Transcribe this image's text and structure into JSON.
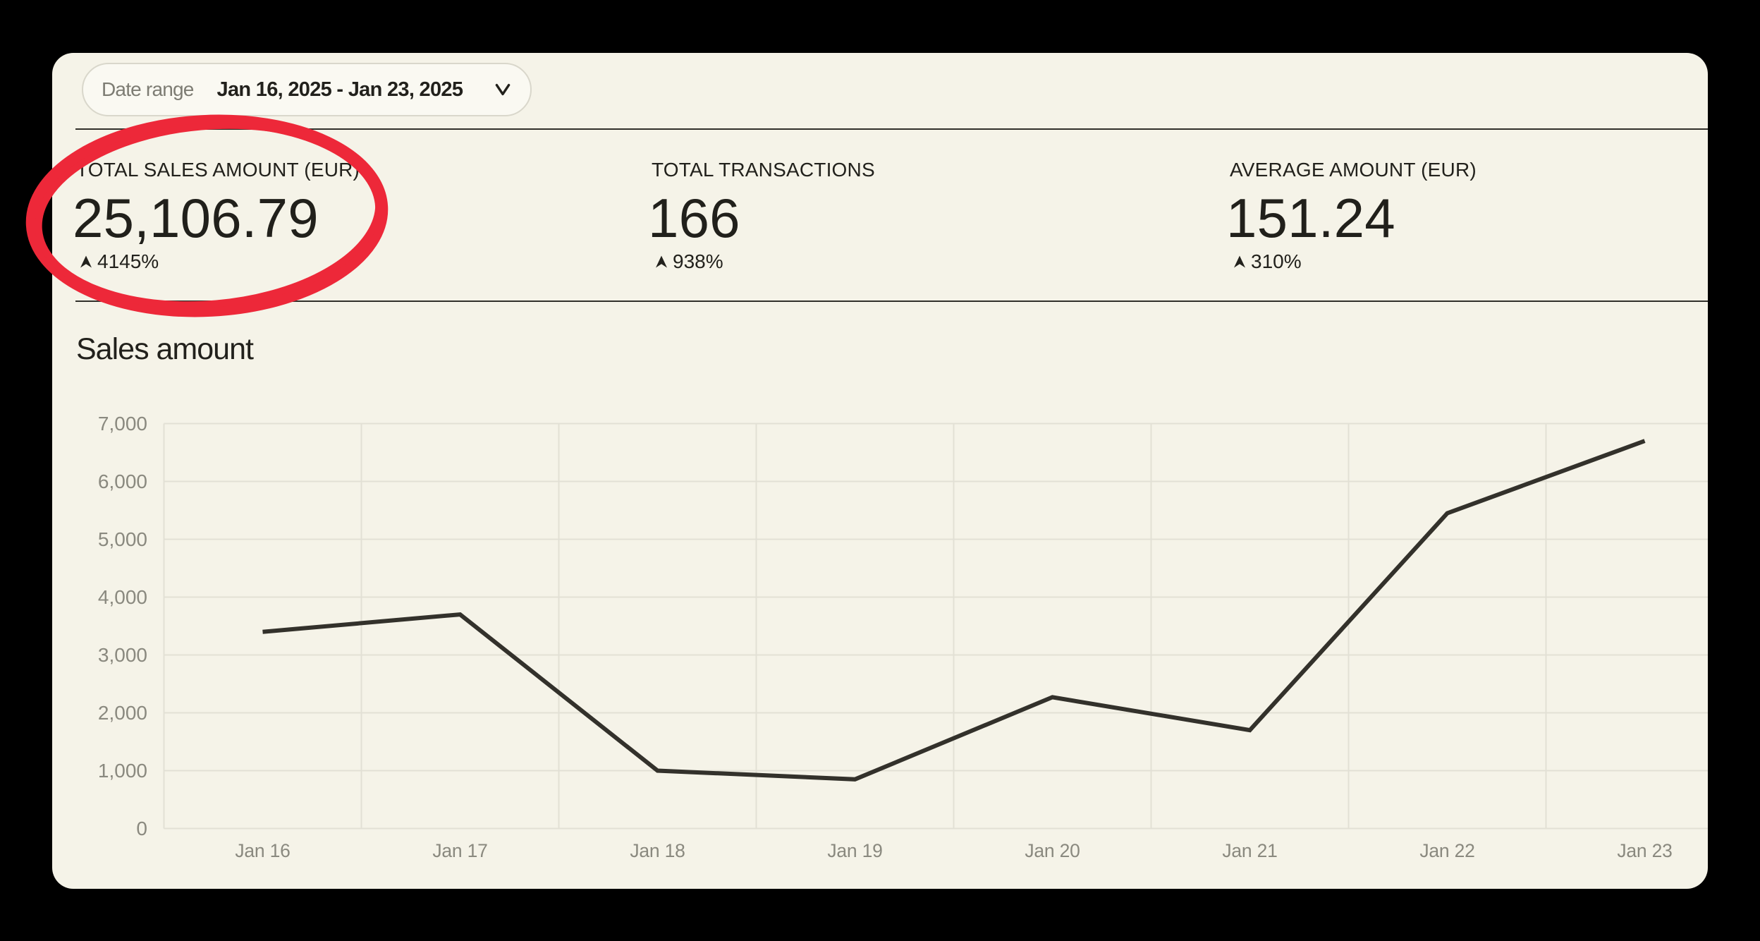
{
  "date_filter": {
    "label": "Date range",
    "value": "Jan 16, 2025 - Jan 23, 2025"
  },
  "kpis": [
    {
      "label": "TOTAL SALES AMOUNT (EUR)",
      "value": "25,106.79",
      "delta": "4145%",
      "direction": "up",
      "annotated": true
    },
    {
      "label": "TOTAL TRANSACTIONS",
      "value": "166",
      "delta": "938%",
      "direction": "up",
      "annotated": false
    },
    {
      "label": "AVERAGE AMOUNT (EUR)",
      "value": "151.24",
      "delta": "310%",
      "direction": "up",
      "annotated": false
    }
  ],
  "section": {
    "title": "Sales amount"
  },
  "chart_data": {
    "type": "line",
    "title": "Sales amount",
    "categories": [
      "Jan 16",
      "Jan 17",
      "Jan 18",
      "Jan 19",
      "Jan 20",
      "Jan 21",
      "Jan 22",
      "Jan 23"
    ],
    "values": [
      3400,
      3700,
      1000,
      850,
      2270,
      1700,
      5450,
      6700
    ],
    "xlabel": "",
    "ylabel": "",
    "ylim": [
      0,
      7000
    ],
    "ytick_step": 1000,
    "ytick_labels": [
      "0",
      "1,000",
      "2,000",
      "3,000",
      "4,000",
      "5,000",
      "6,000",
      "7,000"
    ],
    "grid": true,
    "legend": false
  },
  "annotation": {
    "shape": "hand-drawn ellipse",
    "target": "TOTAL SALES AMOUNT (EUR)",
    "color": "#ED2839"
  },
  "colors": {
    "page_background": "#000000",
    "panel_background": "#F5F3E8",
    "text_primary": "#22211C",
    "text_muted": "#8A897F",
    "gridline": "#E2E0D5",
    "line_series": "#33312B",
    "divider": "#31302B",
    "annotation_red": "#ED2839"
  }
}
